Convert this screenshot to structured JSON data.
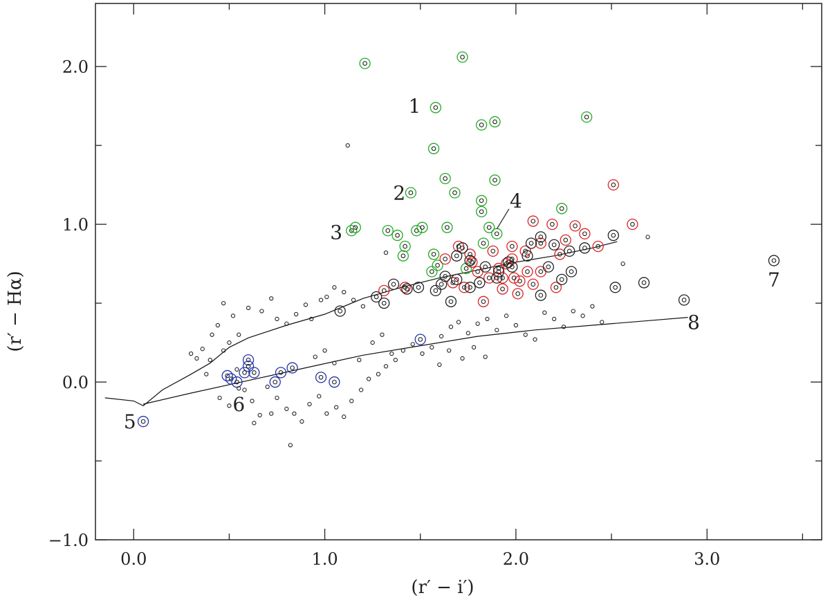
{
  "chart_data": {
    "type": "scatter",
    "xlabel": "(r′ − i′)",
    "ylabel": "(r′ − Hα)",
    "xlim": [
      -0.2,
      3.6
    ],
    "ylim": [
      -1.0,
      2.4
    ],
    "xticks": [
      "0.0",
      "1.0",
      "2.0",
      "3.0"
    ],
    "yticks": [
      "−1.0",
      "0.0",
      "1.0",
      "2.0"
    ],
    "ytick_values": [
      -1.0,
      0.0,
      1.0,
      2.0
    ],
    "xtick_values": [
      0.0,
      1.0,
      2.0,
      3.0
    ],
    "annotations": [
      {
        "text": "1",
        "x": 1.47,
        "y": 1.75
      },
      {
        "text": "2",
        "x": 1.39,
        "y": 1.2
      },
      {
        "text": "3",
        "x": 1.06,
        "y": 0.95
      },
      {
        "text": "4",
        "x": 2.0,
        "y": 1.15
      },
      {
        "text": "5",
        "x": -0.02,
        "y": -0.25
      },
      {
        "text": "6",
        "x": 0.55,
        "y": -0.14
      },
      {
        "text": "7",
        "x": 3.35,
        "y": 0.65
      },
      {
        "text": "8",
        "x": 2.93,
        "y": 0.38
      }
    ],
    "curves": [
      {
        "name": "",
        "x": [
          -0.15,
          0.0,
          0.05,
          0.15,
          0.3,
          0.4,
          0.5,
          0.6,
          0.8,
          1.0,
          1.2,
          1.4,
          1.6,
          1.8,
          2.0,
          2.2,
          2.4,
          2.53
        ],
        "y": [
          -0.1,
          -0.12,
          -0.15,
          -0.05,
          0.05,
          0.12,
          0.22,
          0.28,
          0.36,
          0.43,
          0.53,
          0.6,
          0.66,
          0.71,
          0.76,
          0.8,
          0.85,
          0.89
        ]
      },
      {
        "name": "",
        "x": [
          0.05,
          0.3,
          0.6,
          0.9,
          1.2,
          1.5,
          1.8,
          2.1,
          2.4,
          2.7,
          2.9
        ],
        "y": [
          -0.14,
          -0.07,
          0.01,
          0.09,
          0.17,
          0.23,
          0.29,
          0.33,
          0.36,
          0.39,
          0.41
        ]
      }
    ],
    "series": [
      {
        "kind": "emission-green",
        "color": "#22aa22",
        "points": [
          [
            1.21,
            2.02
          ],
          [
            1.72,
            2.06
          ],
          [
            1.58,
            1.74
          ],
          [
            1.82,
            1.63
          ],
          [
            1.89,
            1.65
          ],
          [
            2.37,
            1.68
          ],
          [
            1.57,
            1.48
          ],
          [
            1.63,
            1.29
          ],
          [
            1.68,
            1.2
          ],
          [
            1.45,
            1.2
          ],
          [
            1.89,
            1.28
          ],
          [
            1.82,
            1.15
          ],
          [
            1.82,
            1.08
          ],
          [
            2.24,
            1.1
          ],
          [
            1.14,
            0.96
          ],
          [
            1.16,
            0.98
          ],
          [
            1.33,
            0.96
          ],
          [
            1.38,
            0.93
          ],
          [
            1.48,
            0.96
          ],
          [
            1.51,
            0.98
          ],
          [
            1.64,
            0.98
          ],
          [
            1.86,
            0.98
          ],
          [
            1.9,
            0.94
          ],
          [
            1.42,
            0.86
          ],
          [
            1.41,
            0.8
          ],
          [
            1.57,
            0.81
          ],
          [
            1.59,
            0.74
          ],
          [
            1.56,
            0.7
          ],
          [
            1.74,
            0.72
          ],
          [
            1.83,
            0.88
          ]
        ]
      },
      {
        "kind": "red",
        "color": "#dd2222",
        "points": [
          [
            2.51,
            1.25
          ],
          [
            2.61,
            1.0
          ],
          [
            2.09,
            1.02
          ],
          [
            2.19,
            1.0
          ],
          [
            2.31,
            0.99
          ],
          [
            2.26,
            0.9
          ],
          [
            2.36,
            0.94
          ],
          [
            2.43,
            0.86
          ],
          [
            2.13,
            0.88
          ],
          [
            1.98,
            0.86
          ],
          [
            1.88,
            0.83
          ],
          [
            1.76,
            0.81
          ],
          [
            1.7,
            0.86
          ],
          [
            1.95,
            0.75
          ],
          [
            2.06,
            0.7
          ],
          [
            2.02,
            0.64
          ],
          [
            2.13,
            0.7
          ],
          [
            2.23,
            0.81
          ],
          [
            1.93,
            0.66
          ],
          [
            1.86,
            0.66
          ],
          [
            1.8,
            0.7
          ],
          [
            1.67,
            0.63
          ],
          [
            1.73,
            0.6
          ],
          [
            1.93,
            0.59
          ],
          [
            2.01,
            0.56
          ],
          [
            2.21,
            0.6
          ],
          [
            1.83,
            0.51
          ],
          [
            1.31,
            0.58
          ],
          [
            1.42,
            0.6
          ],
          [
            1.98,
            0.78
          ],
          [
            2.05,
            0.83
          ],
          [
            1.91,
            0.72
          ],
          [
            1.63,
            0.78
          ],
          [
            1.77,
            0.76
          ],
          [
            2.09,
            0.62
          ],
          [
            1.99,
            0.66
          ]
        ]
      },
      {
        "kind": "black-ring",
        "color": "#222222",
        "points": [
          [
            1.72,
            0.85
          ],
          [
            1.69,
            0.8
          ],
          [
            1.76,
            0.77
          ],
          [
            1.84,
            0.73
          ],
          [
            1.91,
            0.7
          ],
          [
            1.96,
            0.76
          ],
          [
            2.06,
            0.8
          ],
          [
            2.13,
            0.92
          ],
          [
            2.2,
            0.87
          ],
          [
            2.28,
            0.83
          ],
          [
            2.36,
            0.85
          ],
          [
            2.51,
            0.93
          ],
          [
            2.17,
            0.73
          ],
          [
            2.24,
            0.65
          ],
          [
            2.29,
            0.7
          ],
          [
            1.81,
            0.63
          ],
          [
            1.76,
            0.6
          ],
          [
            1.69,
            0.65
          ],
          [
            1.61,
            0.62
          ],
          [
            1.58,
            0.58
          ],
          [
            1.49,
            0.6
          ],
          [
            1.43,
            0.59
          ],
          [
            1.66,
            0.51
          ],
          [
            1.9,
            0.66
          ],
          [
            2.13,
            0.55
          ],
          [
            2.52,
            0.6
          ],
          [
            2.67,
            0.63
          ],
          [
            2.88,
            0.52
          ],
          [
            3.35,
            0.77
          ],
          [
            1.36,
            0.62
          ],
          [
            1.27,
            0.54
          ],
          [
            1.08,
            0.45
          ],
          [
            1.31,
            0.5
          ],
          [
            1.63,
            0.67
          ],
          [
            1.98,
            0.73
          ],
          [
            2.08,
            0.88
          ]
        ]
      },
      {
        "kind": "blue",
        "color": "#2233aa",
        "points": [
          [
            0.05,
            -0.25
          ],
          [
            0.49,
            0.04
          ],
          [
            0.51,
            0.02
          ],
          [
            0.58,
            0.06
          ],
          [
            0.6,
            0.14
          ],
          [
            0.6,
            0.1
          ],
          [
            0.63,
            0.06
          ],
          [
            0.54,
            0.0
          ],
          [
            0.74,
            0.0
          ],
          [
            0.77,
            0.06
          ],
          [
            0.83,
            0.09
          ],
          [
            0.98,
            0.03
          ],
          [
            1.05,
            0.0
          ],
          [
            1.5,
            0.27
          ]
        ]
      },
      {
        "kind": "small-dots",
        "color": "#222222",
        "points": [
          [
            0.33,
            0.15
          ],
          [
            0.4,
            0.14
          ],
          [
            0.47,
            0.2
          ],
          [
            0.5,
            0.25
          ],
          [
            0.55,
            0.3
          ],
          [
            0.44,
            0.36
          ],
          [
            0.47,
            0.5
          ],
          [
            0.52,
            0.42
          ],
          [
            0.6,
            0.47
          ],
          [
            0.67,
            0.45
          ],
          [
            0.72,
            0.53
          ],
          [
            0.75,
            0.4
          ],
          [
            0.8,
            0.37
          ],
          [
            0.85,
            0.43
          ],
          [
            0.9,
            0.49
          ],
          [
            0.93,
            0.4
          ],
          [
            0.98,
            0.52
          ],
          [
            1.01,
            0.54
          ],
          [
            1.05,
            0.6
          ],
          [
            1.1,
            0.57
          ],
          [
            1.15,
            0.52
          ],
          [
            1.2,
            0.48
          ],
          [
            0.36,
            0.21
          ],
          [
            0.41,
            0.3
          ],
          [
            0.54,
            0.08
          ],
          [
            0.58,
            -0.05
          ],
          [
            0.62,
            -0.12
          ],
          [
            0.66,
            -0.21
          ],
          [
            0.7,
            -0.03
          ],
          [
            0.75,
            -0.1
          ],
          [
            0.8,
            -0.17
          ],
          [
            0.84,
            -0.2
          ],
          [
            0.88,
            -0.25
          ],
          [
            0.92,
            -0.14
          ],
          [
            0.97,
            -0.09
          ],
          [
            1.01,
            -0.2
          ],
          [
            1.06,
            -0.16
          ],
          [
            1.1,
            -0.22
          ],
          [
            1.14,
            -0.12
          ],
          [
            1.19,
            -0.05
          ],
          [
            1.23,
            0.02
          ],
          [
            1.28,
            0.05
          ],
          [
            1.32,
            0.1
          ],
          [
            1.37,
            0.14
          ],
          [
            1.41,
            0.2
          ],
          [
            1.46,
            0.24
          ],
          [
            1.51,
            0.18
          ],
          [
            1.56,
            0.22
          ],
          [
            1.61,
            0.29
          ],
          [
            1.66,
            0.35
          ],
          [
            1.7,
            0.38
          ],
          [
            1.75,
            0.31
          ],
          [
            1.8,
            0.37
          ],
          [
            1.85,
            0.4
          ],
          [
            1.9,
            0.33
          ],
          [
            1.95,
            0.42
          ],
          [
            2.0,
            0.36
          ],
          [
            2.05,
            0.3
          ],
          [
            2.1,
            0.27
          ],
          [
            2.15,
            0.44
          ],
          [
            2.2,
            0.4
          ],
          [
            2.25,
            0.35
          ],
          [
            2.3,
            0.45
          ],
          [
            2.35,
            0.42
          ],
          [
            2.4,
            0.48
          ],
          [
            2.45,
            0.38
          ],
          [
            0.82,
            -0.4
          ],
          [
            0.63,
            -0.26
          ],
          [
            0.72,
            -0.2
          ],
          [
            0.5,
            -0.15
          ],
          [
            0.45,
            -0.1
          ],
          [
            0.55,
            -0.04
          ],
          [
            0.95,
            0.16
          ],
          [
            1.0,
            0.2
          ],
          [
            1.05,
            0.12
          ],
          [
            1.18,
            0.14
          ],
          [
            1.25,
            0.25
          ],
          [
            1.3,
            0.3
          ],
          [
            1.35,
            0.18
          ],
          [
            1.6,
            0.11
          ],
          [
            1.65,
            0.2
          ],
          [
            1.72,
            0.15
          ],
          [
            1.78,
            0.22
          ],
          [
            1.84,
            0.16
          ],
          [
            0.38,
            0.05
          ],
          [
            0.3,
            0.18
          ],
          [
            1.12,
            1.5
          ],
          [
            1.32,
            0.82
          ],
          [
            2.69,
            0.92
          ],
          [
            2.56,
            0.75
          ]
        ]
      }
    ]
  }
}
